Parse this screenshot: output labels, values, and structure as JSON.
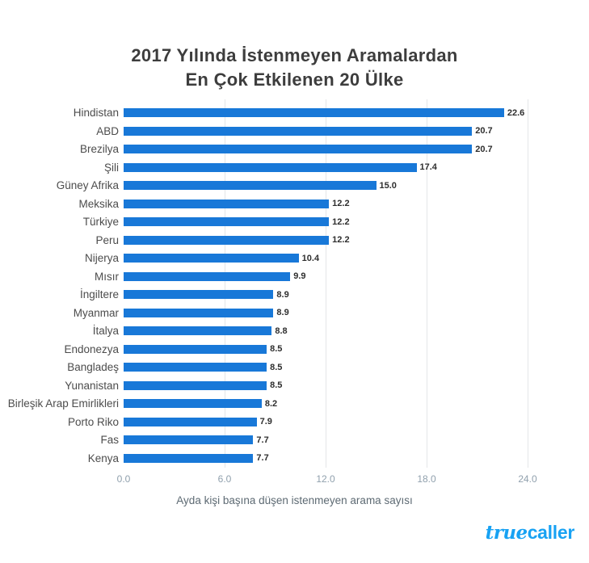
{
  "title": {
    "line1": "2017 Yılında İstenmeyen Aramalardan",
    "line2": "En Çok Etkilenen 20 Ülke"
  },
  "chart_data": {
    "type": "bar",
    "orientation": "horizontal",
    "title": "2017 Yılında İstenmeyen Aramalardan En Çok Etkilenen 20 Ülke",
    "categories": [
      "Hindistan",
      "ABD",
      "Brezilya",
      "Şili",
      "Güney Afrika",
      "Meksika",
      "Türkiye",
      "Peru",
      "Nijerya",
      "Mısır",
      "İngiltere",
      "Myanmar",
      "İtalya",
      "Endonezya",
      "Bangladeş",
      "Yunanistan",
      "Birleşik Arap Emirlikleri",
      "Porto Riko",
      "Fas",
      "Kenya"
    ],
    "values": [
      22.6,
      20.7,
      20.7,
      17.4,
      15.0,
      12.2,
      12.2,
      12.2,
      10.4,
      9.9,
      8.9,
      8.9,
      8.8,
      8.5,
      8.5,
      8.5,
      8.2,
      7.9,
      7.7,
      7.7
    ],
    "xlabel": "Ayda kişi başına düşen istenmeyen arama sayısı",
    "xticks": [
      0.0,
      6.0,
      12.0,
      18.0,
      24.0
    ],
    "xtick_labels": [
      "0.0",
      "6.0",
      "12.0",
      "18.0",
      "24.0"
    ],
    "xlim": [
      0,
      24
    ],
    "grid": true,
    "legend": "none",
    "bar_color": "#1878d8",
    "gridline_color": "#e4e6e8",
    "value_labels_shown": true
  },
  "branding": {
    "logo_script": "true",
    "logo_bold": "caller",
    "logo_color": "#18a2f3"
  }
}
